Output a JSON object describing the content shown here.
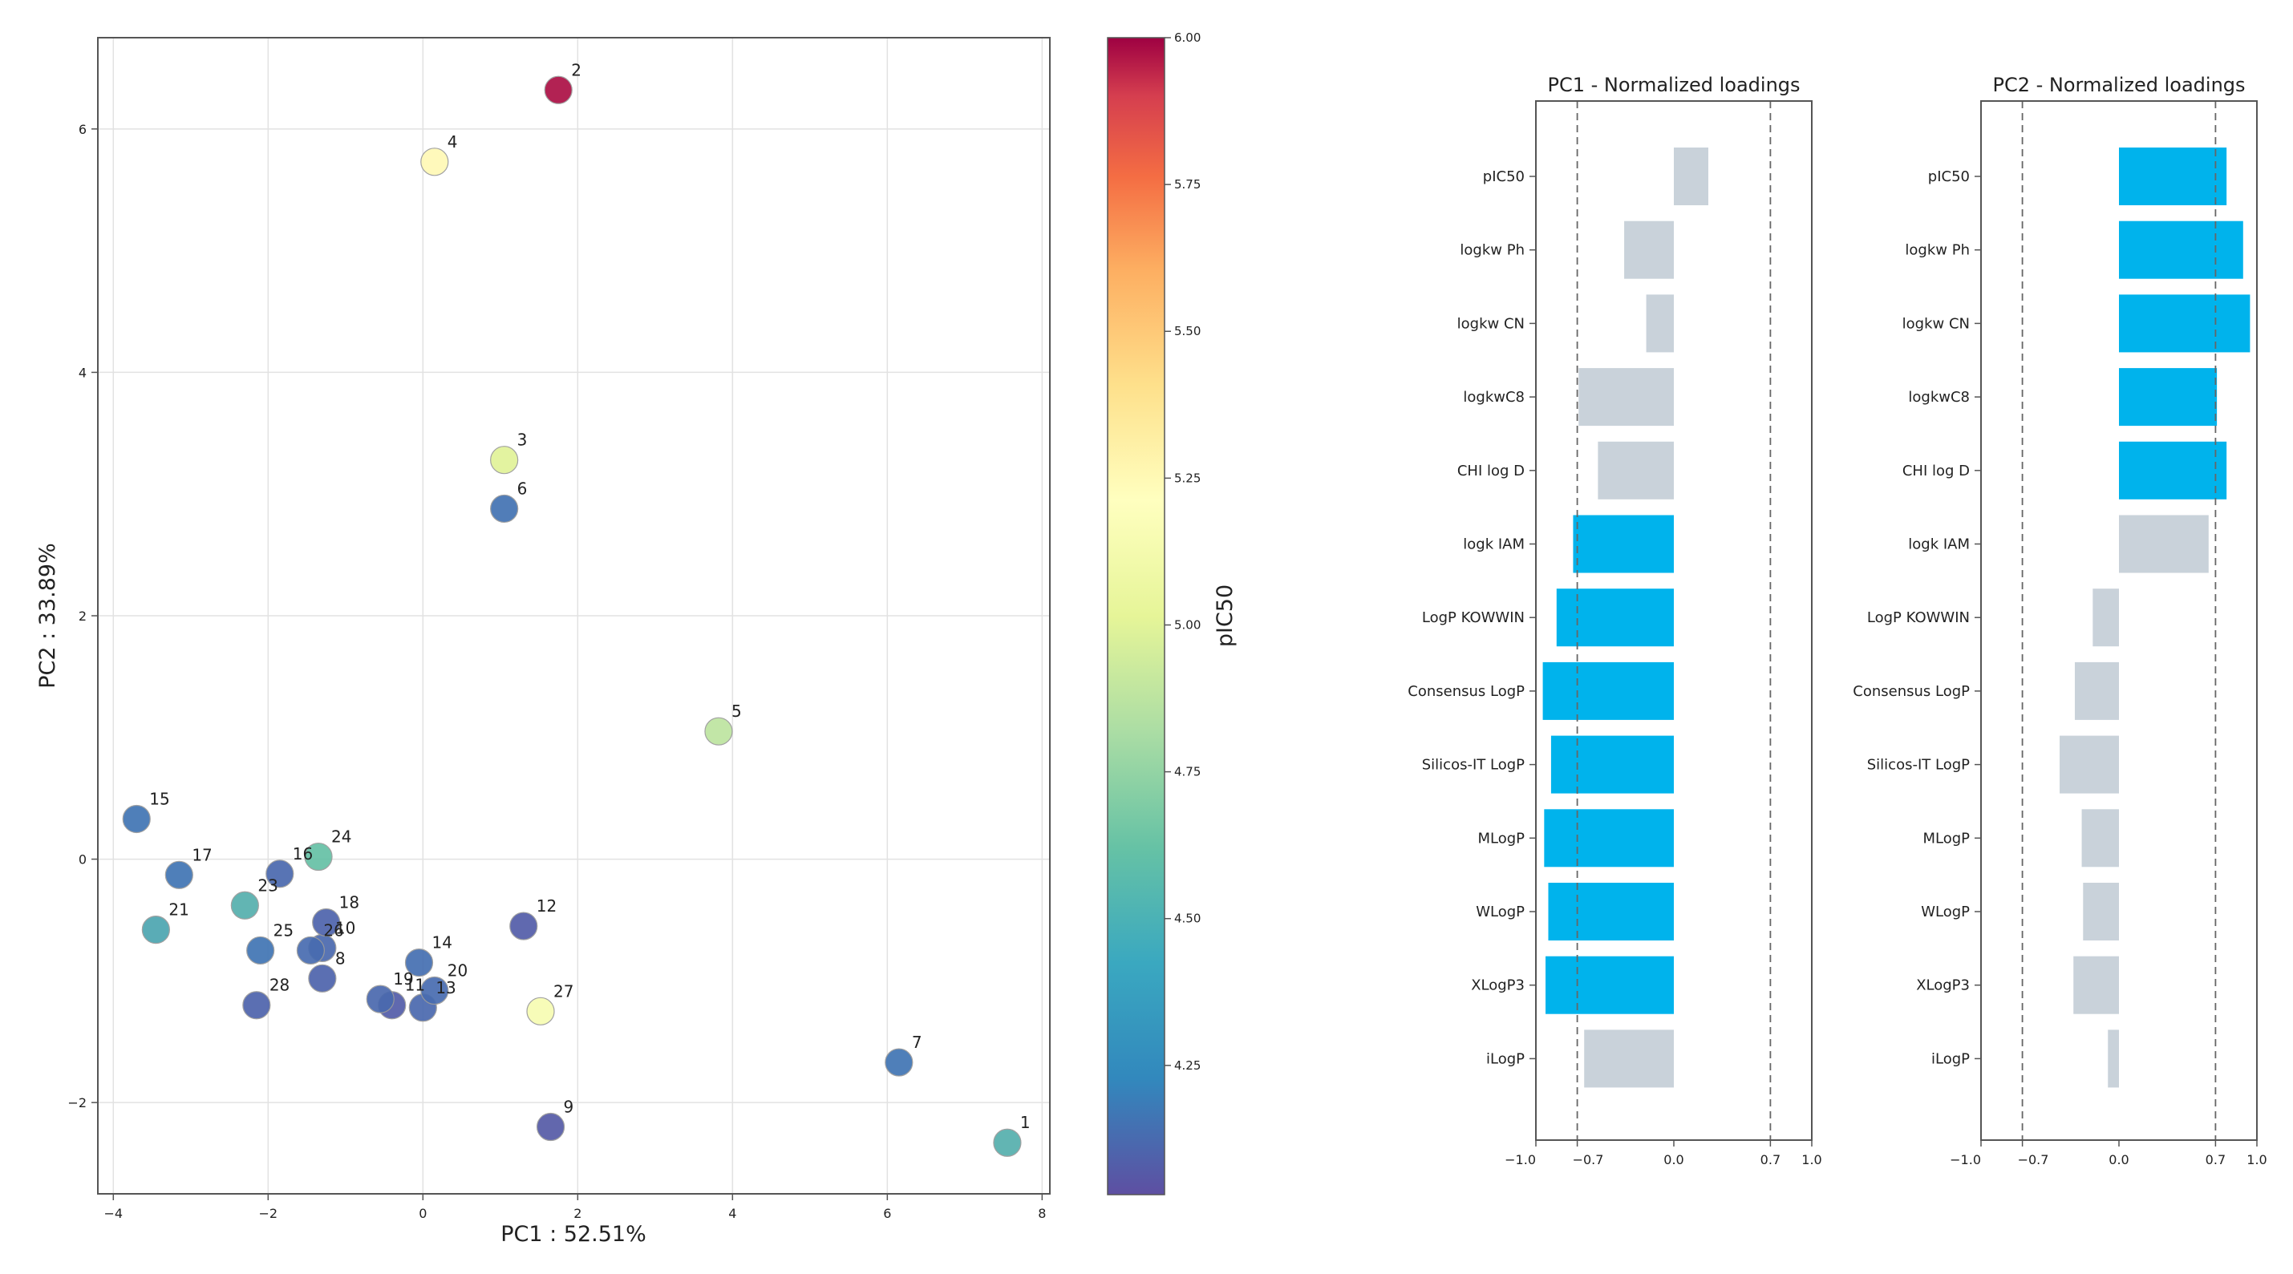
{
  "chart_data": [
    {
      "type": "scatter",
      "xlabel": "PC1 : 52.51%",
      "ylabel": "PC2 : 33.89%",
      "xlim": [
        -4.2,
        8.1
      ],
      "ylim": [
        -2.75,
        6.75
      ],
      "xticks": [
        -4,
        -2,
        0,
        2,
        4,
        6,
        8
      ],
      "xtick_labels": [
        "−4",
        "−2",
        "0",
        "2",
        "4",
        "6",
        "8"
      ],
      "yticks": [
        -2,
        0,
        2,
        4,
        6
      ],
      "ytick_labels": [
        "−2",
        "0",
        "2",
        "4",
        "6"
      ],
      "grid": true,
      "colorbar": {
        "label": "pIC50",
        "min": 4.03,
        "max": 6.0,
        "ticks": [
          4.25,
          4.5,
          4.75,
          5.0,
          5.25,
          5.5,
          5.75,
          6.0
        ],
        "tick_labels": [
          "4.25",
          "4.50",
          "4.75",
          "5.00",
          "5.25",
          "5.50",
          "5.75",
          "6.00"
        ],
        "colormap": [
          "#5e4fa2",
          "#3288bd",
          "#66c2a5",
          "#abdda4",
          "#e6f598",
          "#ffffbf",
          "#fee08b",
          "#fdae61",
          "#f46d43",
          "#d53e4f",
          "#9e0142"
        ]
      },
      "points": [
        {
          "label": "1",
          "x": 7.55,
          "y": -2.33,
          "value": 4.36
        },
        {
          "label": "2",
          "x": 1.75,
          "y": 6.32,
          "value": 5.95
        },
        {
          "label": "3",
          "x": 1.05,
          "y": 3.28,
          "value": 4.8
        },
        {
          "label": "4",
          "x": 0.15,
          "y": 5.73,
          "value": 5.05
        },
        {
          "label": "5",
          "x": 3.82,
          "y": 1.05,
          "value": 4.68
        },
        {
          "label": "6",
          "x": 1.05,
          "y": 2.88,
          "value": 4.15
        },
        {
          "label": "7",
          "x": 6.15,
          "y": -1.67,
          "value": 4.16
        },
        {
          "label": "8",
          "x": -1.3,
          "y": -0.98,
          "value": 4.1
        },
        {
          "label": "9",
          "x": 1.65,
          "y": -2.2,
          "value": 4.07
        },
        {
          "label": "10",
          "x": -1.3,
          "y": -0.73,
          "value": 4.12
        },
        {
          "label": "11",
          "x": -0.4,
          "y": -1.2,
          "value": 4.08
        },
        {
          "label": "12",
          "x": 1.3,
          "y": -0.55,
          "value": 4.08
        },
        {
          "label": "13",
          "x": 0.0,
          "y": -1.22,
          "value": 4.12
        },
        {
          "label": "14",
          "x": -0.05,
          "y": -0.85,
          "value": 4.14
        },
        {
          "label": "15",
          "x": -3.7,
          "y": 0.33,
          "value": 4.16
        },
        {
          "label": "16",
          "x": -1.85,
          "y": -0.12,
          "value": 4.12
        },
        {
          "label": "17",
          "x": -3.15,
          "y": -0.13,
          "value": 4.16
        },
        {
          "label": "18",
          "x": -1.25,
          "y": -0.52,
          "value": 4.1
        },
        {
          "label": "19",
          "x": -0.55,
          "y": -1.15,
          "value": 4.12
        },
        {
          "label": "20",
          "x": 0.15,
          "y": -1.08,
          "value": 4.13
        },
        {
          "label": "21",
          "x": -3.45,
          "y": -0.58,
          "value": 4.33
        },
        {
          "label": "23",
          "x": -2.3,
          "y": -0.38,
          "value": 4.36
        },
        {
          "label": "24",
          "x": -1.35,
          "y": 0.02,
          "value": 4.42
        },
        {
          "label": "25",
          "x": -2.1,
          "y": -0.75,
          "value": 4.16
        },
        {
          "label": "26",
          "x": -1.45,
          "y": -0.75,
          "value": 4.13
        },
        {
          "label": "27",
          "x": 1.52,
          "y": -1.25,
          "value": 4.95
        },
        {
          "label": "28",
          "x": -2.15,
          "y": -1.2,
          "value": 4.1
        }
      ]
    },
    {
      "type": "bar",
      "orientation": "horizontal",
      "title": "PC1 - Normalized loadings",
      "xlim": [
        -1.0,
        1.0
      ],
      "xticks": [
        -1.0,
        -0.7,
        0.0,
        0.7,
        1.0
      ],
      "xtick_labels": [
        "−1.0",
        "−0.7",
        "0.0",
        "0.7",
        "1.0"
      ],
      "threshold_lines": [
        -0.7,
        0.7
      ],
      "highlight_color": "#00b3ec",
      "base_color": "#c9d2da",
      "categories": [
        "pIC50",
        "logkw Ph",
        "logkw CN",
        "logkwC8",
        "CHI log D",
        "logk IAM",
        "LogP KOWWIN",
        "Consensus LogP",
        "Silicos-IT LogP",
        "MLogP",
        "WLogP",
        "XLogP3",
        "iLogP"
      ],
      "values": [
        0.25,
        -0.36,
        -0.2,
        -0.69,
        -0.55,
        -0.73,
        -0.85,
        -0.95,
        -0.89,
        -0.94,
        -0.91,
        -0.93,
        -0.65
      ],
      "highlighted": [
        false,
        false,
        false,
        false,
        false,
        true,
        true,
        true,
        true,
        true,
        true,
        true,
        false
      ]
    },
    {
      "type": "bar",
      "orientation": "horizontal",
      "title": "PC2 - Normalized loadings",
      "xlim": [
        -1.0,
        1.0
      ],
      "xticks": [
        -1.0,
        -0.7,
        0.0,
        0.7,
        1.0
      ],
      "xtick_labels": [
        "−1.0",
        "−0.7",
        "0.0",
        "0.7",
        "1.0"
      ],
      "threshold_lines": [
        -0.7,
        0.7
      ],
      "highlight_color": "#00b3ec",
      "base_color": "#c9d2da",
      "categories": [
        "pIC50",
        "logkw Ph",
        "logkw CN",
        "logkwC8",
        "CHI log D",
        "logk IAM",
        "LogP KOWWIN",
        "Consensus LogP",
        "Silicos-IT LogP",
        "MLogP",
        "WLogP",
        "XLogP3",
        "iLogP"
      ],
      "values": [
        0.78,
        0.9,
        0.95,
        0.71,
        0.78,
        0.65,
        -0.19,
        -0.32,
        -0.43,
        -0.27,
        -0.26,
        -0.33,
        -0.08
      ],
      "highlighted": [
        true,
        true,
        true,
        true,
        true,
        false,
        false,
        false,
        false,
        false,
        false,
        false,
        false
      ]
    }
  ]
}
